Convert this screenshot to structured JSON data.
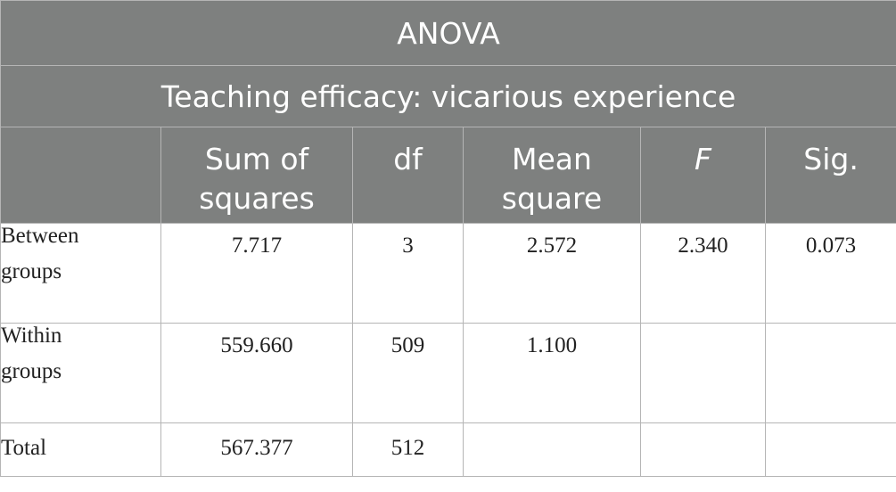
{
  "table": {
    "title": "ANOVA",
    "subtitle": "Teaching efficacy: vicarious experience",
    "columns": [
      {
        "line1": "",
        "line2": ""
      },
      {
        "line1": "Sum of",
        "line2": "squares"
      },
      {
        "line1": "df",
        "line2": ""
      },
      {
        "line1": "Mean",
        "line2": "square"
      },
      {
        "line1": "F",
        "line2": ""
      },
      {
        "line1": "Sig.",
        "line2": ""
      }
    ],
    "rows": [
      {
        "label_line1": "Between",
        "label_line2": "groups",
        "sum_of_squares": "7.717",
        "df": "3",
        "mean_square": "2.572",
        "f": "2.340",
        "sig": "0.073"
      },
      {
        "label_line1": "Within",
        "label_line2": "groups",
        "sum_of_squares": "559.660",
        "df": "509",
        "mean_square": "1.100",
        "f": "",
        "sig": ""
      },
      {
        "label_line1": "Total",
        "label_line2": "",
        "sum_of_squares": "567.377",
        "df": "512",
        "mean_square": "",
        "f": "",
        "sig": ""
      }
    ],
    "colors": {
      "header_background": "#7e807f",
      "header_text": "#ffffff",
      "grid_lines": "#b5b5b5"
    }
  }
}
